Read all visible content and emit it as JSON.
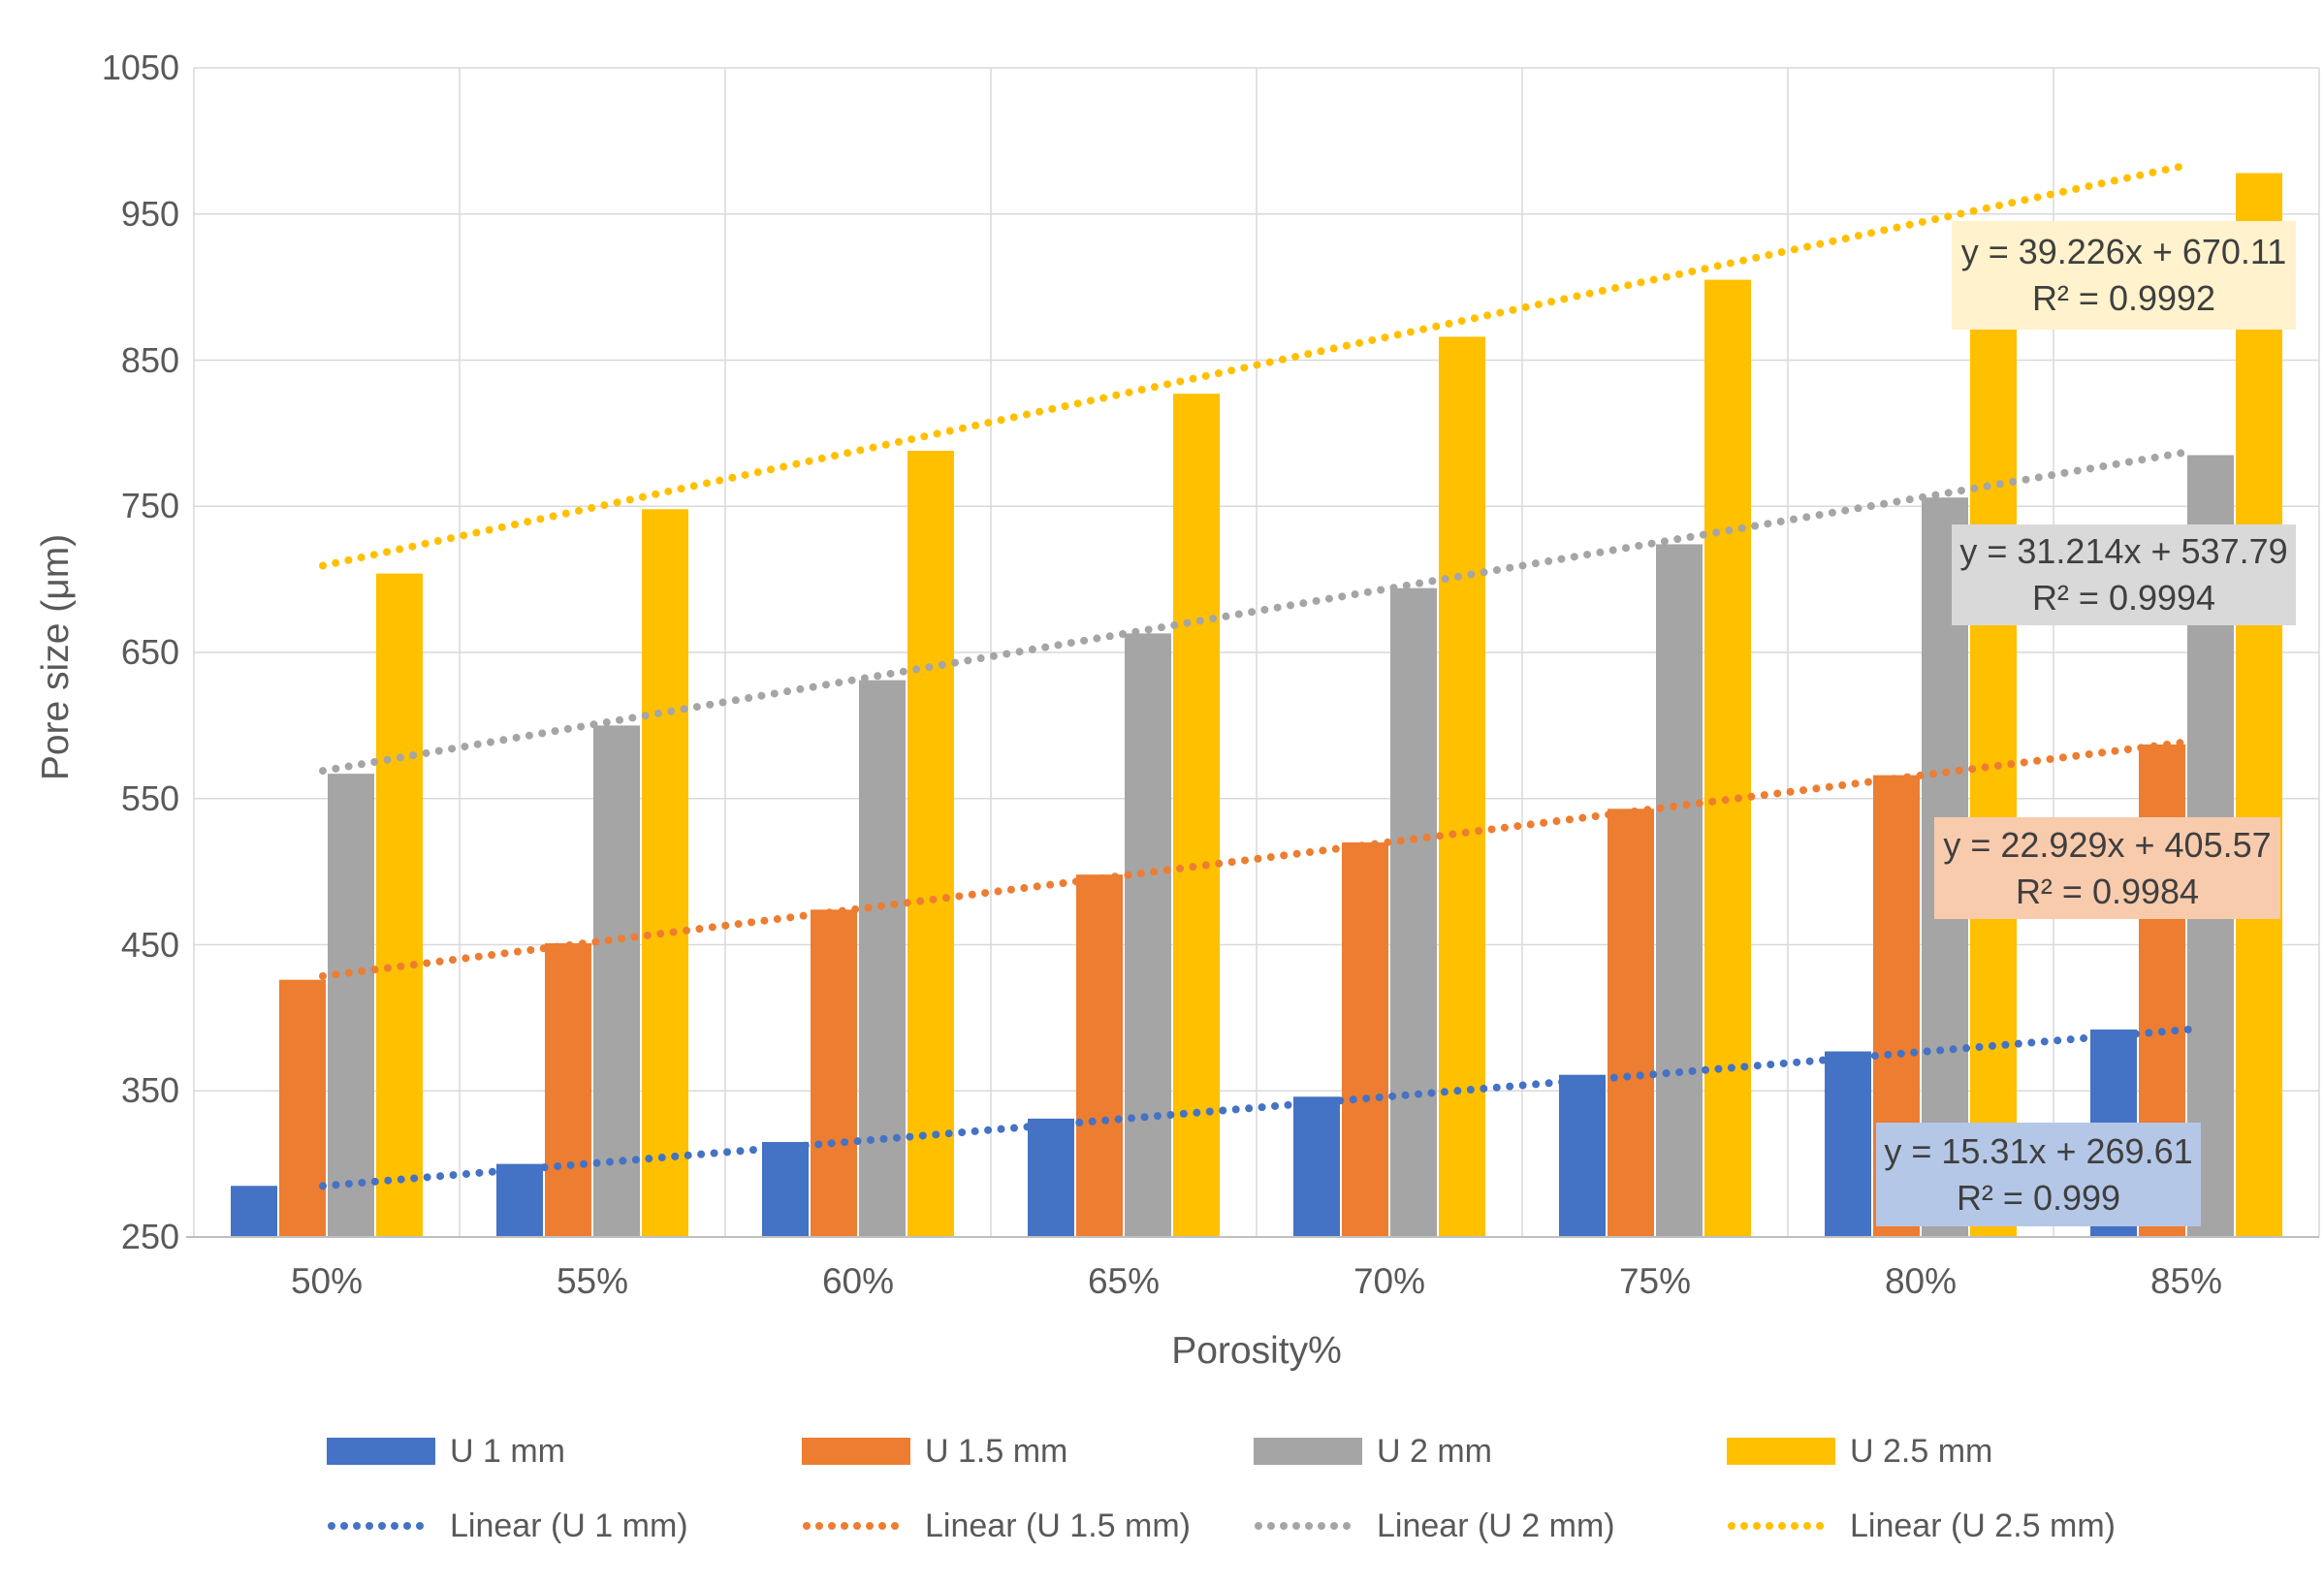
{
  "chart_data": {
    "type": "bar",
    "title": "",
    "xlabel": "Porosity%",
    "ylabel": "Pore size (μm)",
    "ylim": [
      250,
      1050
    ],
    "ytick_step": 100,
    "yticks": [
      250,
      350,
      450,
      550,
      650,
      750,
      850,
      950,
      1050
    ],
    "grid": true,
    "legend_position": "bottom",
    "categories": [
      "50%",
      "55%",
      "60%",
      "65%",
      "70%",
      "75%",
      "80%",
      "85%"
    ],
    "series": [
      {
        "name": "U 1 mm",
        "color": "#4472C4",
        "values": [
          285,
          300,
          315,
          331,
          346,
          361,
          377,
          392
        ],
        "legend_linear": "Linear (U 1 mm)",
        "trend": {
          "slope": 15.31,
          "intercept": 269.61,
          "r2": 0.999,
          "equation": "y = 15.31x + 269.61",
          "r2_label": "R² = 0.999",
          "box_color": "#B4C7E7"
        }
      },
      {
        "name": "U 1.5 mm",
        "color": "#ED7D31",
        "values": [
          426,
          451,
          474,
          498,
          520,
          543,
          566,
          587
        ],
        "legend_linear": "Linear (U 1.5 mm)",
        "trend": {
          "slope": 22.929,
          "intercept": 405.57,
          "r2": 0.9984,
          "equation": "y = 22.929x + 405.57",
          "r2_label": "R² = 0.9984",
          "box_color": "#F8CBAD"
        }
      },
      {
        "name": "U 2 mm",
        "color": "#A5A5A5",
        "values": [
          567,
          600,
          631,
          663,
          694,
          724,
          756,
          785
        ],
        "legend_linear": "Linear (U 2 mm)",
        "trend": {
          "slope": 31.214,
          "intercept": 537.79,
          "r2": 0.9994,
          "equation": "y = 31.214x + 537.79",
          "r2_label": "R² = 0.9994",
          "box_color": "#D9D9D9"
        }
      },
      {
        "name": "U 2.5 mm",
        "color": "#FFC000",
        "values": [
          704,
          748,
          788,
          827,
          866,
          905,
          942,
          978
        ],
        "legend_linear": "Linear (U 2.5 mm)",
        "trend": {
          "slope": 39.226,
          "intercept": 670.11,
          "r2": 0.9992,
          "equation": "y = 39.226x + 670.11",
          "r2_label": "R² = 0.9992",
          "box_color": "#FFF2CC"
        }
      }
    ],
    "colors": {
      "gridline": "#D9D9D9",
      "axis_line": "#BFBFBF",
      "tick_text": "#595959",
      "equation_text": "#3F3F3F"
    }
  }
}
